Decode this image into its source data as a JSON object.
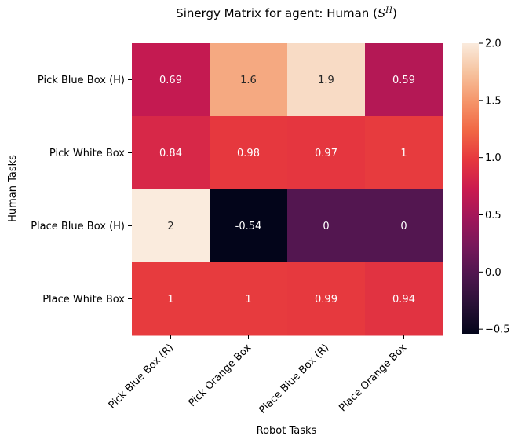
{
  "chart_data": {
    "type": "heatmap",
    "title_prefix": "Sinergy Matrix for agent: Human (",
    "title_symbol": "S",
    "title_superscript": "H",
    "title_suffix": ")",
    "xlabel": "Robot Tasks",
    "ylabel": "Human Tasks",
    "x_categories": [
      "Pick Blue Box (R)",
      "Pick Orange Box",
      "Place Blue Box (R)",
      "Place Orange Box"
    ],
    "y_categories": [
      "Pick Blue Box (H)",
      "Pick White Box",
      "Place Blue Box (H)",
      "Place White Box"
    ],
    "values": [
      [
        0.69,
        1.6,
        1.9,
        0.59
      ],
      [
        0.84,
        0.98,
        0.97,
        1.0
      ],
      [
        2.0,
        -0.54,
        0.0,
        0.0
      ],
      [
        1.0,
        1.0,
        0.99,
        0.94
      ]
    ],
    "cell_labels": [
      [
        "0.69",
        "1.6",
        "1.9",
        "0.59"
      ],
      [
        "0.84",
        "0.98",
        "0.97",
        "1"
      ],
      [
        "2",
        "-0.54",
        "0",
        "0"
      ],
      [
        "1",
        "1",
        "0.99",
        "0.94"
      ]
    ],
    "colorbar": {
      "vmin": -0.54,
      "vmax": 2.0,
      "ticks": [
        -0.5,
        0.0,
        0.5,
        1.0,
        1.5,
        2.0
      ],
      "tick_labels": [
        "−0.5",
        "0.0",
        "0.5",
        "1.0",
        "1.5",
        "2.0"
      ]
    },
    "colormap": "rocket"
  }
}
